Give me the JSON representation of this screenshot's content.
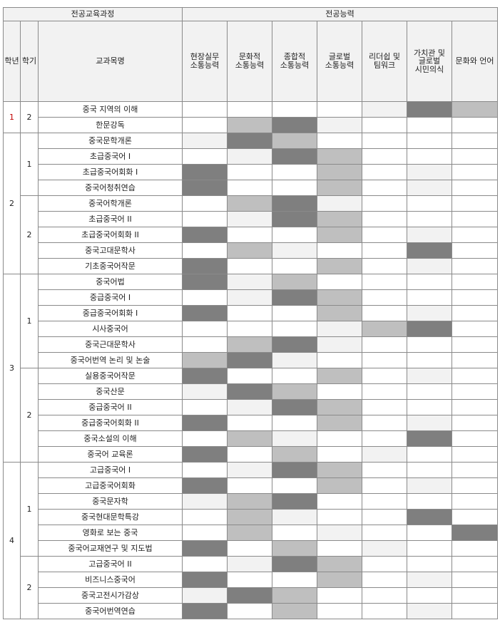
{
  "header": {
    "group_curriculum": "전공교육과정",
    "group_competency": "전공능력",
    "col_year": "학년",
    "col_semester": "학기",
    "col_subject": "교과목명",
    "competencies": [
      "현장실무\n소통능력",
      "문화적\n소통능력",
      "종합적\n소통능력",
      "글로벌\n소통능력",
      "리더쉽 및\n팀워크",
      "가치관 및\n글로벌\n시민의식",
      "문화와 언어"
    ]
  },
  "levels": {
    "D": "#7f7f7f",
    "M": "#bfbfbf",
    "L": "#f2f2f2",
    "N": "#ffffff"
  },
  "groups": [
    {
      "year": "1",
      "year_color": "#c00000",
      "semesters": [
        {
          "semester": "2",
          "courses": [
            {
              "name": "중국 지역의 이해",
              "levels": [
                "N",
                "N",
                "N",
                "N",
                "L",
                "D",
                "M"
              ]
            },
            {
              "name": "한문강독",
              "levels": [
                "N",
                "M",
                "D",
                "L",
                "N",
                "N",
                "N"
              ]
            }
          ]
        }
      ]
    },
    {
      "year": "2",
      "year_color": "#222222",
      "semesters": [
        {
          "semester": "1",
          "courses": [
            {
              "name": "중국문학개론",
              "levels": [
                "L",
                "D",
                "M",
                "N",
                "N",
                "N",
                "N"
              ]
            },
            {
              "name": "초급중국어 I",
              "levels": [
                "N",
                "L",
                "D",
                "M",
                "N",
                "N",
                "N"
              ]
            },
            {
              "name": "초급중국어회화 I",
              "levels": [
                "D",
                "N",
                "N",
                "M",
                "N",
                "L",
                "N"
              ]
            },
            {
              "name": "중국어청취연습",
              "levels": [
                "D",
                "N",
                "N",
                "M",
                "N",
                "L",
                "N"
              ]
            }
          ]
        },
        {
          "semester": "2",
          "courses": [
            {
              "name": "중국어학개론",
              "levels": [
                "N",
                "M",
                "D",
                "L",
                "N",
                "N",
                "N"
              ]
            },
            {
              "name": "초급중국어 II",
              "levels": [
                "N",
                "L",
                "D",
                "M",
                "N",
                "N",
                "N"
              ]
            },
            {
              "name": "초급중국어회화 II",
              "levels": [
                "D",
                "N",
                "N",
                "M",
                "N",
                "L",
                "N"
              ]
            },
            {
              "name": "중국고대문학사",
              "levels": [
                "N",
                "M",
                "L",
                "N",
                "N",
                "D",
                "N"
              ]
            },
            {
              "name": "기초중국어작문",
              "levels": [
                "D",
                "N",
                "N",
                "M",
                "N",
                "L",
                "N"
              ]
            }
          ]
        }
      ]
    },
    {
      "year": "3",
      "year_color": "#222222",
      "semesters": [
        {
          "semester": "1",
          "courses": [
            {
              "name": "중국어법",
              "levels": [
                "D",
                "L",
                "M",
                "N",
                "N",
                "N",
                "N"
              ]
            },
            {
              "name": "중급중국어 I",
              "levels": [
                "N",
                "L",
                "D",
                "M",
                "N",
                "N",
                "N"
              ]
            },
            {
              "name": "중급중국어회화 I",
              "levels": [
                "D",
                "N",
                "N",
                "M",
                "N",
                "L",
                "N"
              ]
            },
            {
              "name": "시사중국어",
              "levels": [
                "N",
                "N",
                "N",
                "L",
                "M",
                "D",
                "N"
              ]
            },
            {
              "name": "중국근대문학사",
              "levels": [
                "N",
                "M",
                "D",
                "L",
                "N",
                "N",
                "N"
              ]
            },
            {
              "name": "중국어번역 논리 및 논술",
              "levels": [
                "M",
                "D",
                "L",
                "N",
                "N",
                "N",
                "N"
              ]
            }
          ]
        },
        {
          "semester": "2",
          "courses": [
            {
              "name": "실용중국어작문",
              "levels": [
                "D",
                "N",
                "N",
                "M",
                "N",
                "L",
                "N"
              ]
            },
            {
              "name": "중국산문",
              "levels": [
                "L",
                "D",
                "M",
                "N",
                "N",
                "N",
                "N"
              ]
            },
            {
              "name": "중급중국어 II",
              "levels": [
                "N",
                "L",
                "D",
                "M",
                "N",
                "N",
                "N"
              ]
            },
            {
              "name": "중급중국어회화 II",
              "levels": [
                "D",
                "N",
                "N",
                "M",
                "N",
                "L",
                "N"
              ]
            },
            {
              "name": "중국소설의 이해",
              "levels": [
                "N",
                "M",
                "L",
                "N",
                "N",
                "D",
                "N"
              ]
            },
            {
              "name": "중국어 교육론",
              "levels": [
                "D",
                "N",
                "M",
                "N",
                "L",
                "N",
                "N"
              ]
            }
          ]
        }
      ]
    },
    {
      "year": "4",
      "year_color": "#222222",
      "semesters": [
        {
          "semester": "1",
          "courses": [
            {
              "name": "고급중국어 I",
              "levels": [
                "N",
                "L",
                "D",
                "M",
                "N",
                "N",
                "N"
              ]
            },
            {
              "name": "고급중국어회화",
              "levels": [
                "D",
                "N",
                "N",
                "M",
                "N",
                "L",
                "N"
              ]
            },
            {
              "name": "중국문자학",
              "levels": [
                "L",
                "M",
                "D",
                "N",
                "N",
                "N",
                "N"
              ]
            },
            {
              "name": "중국현대문학특강",
              "levels": [
                "N",
                "M",
                "L",
                "N",
                "N",
                "D",
                "N"
              ]
            },
            {
              "name": "영화로 보는 중국",
              "levels": [
                "N",
                "M",
                "N",
                "L",
                "N",
                "N",
                "D"
              ]
            },
            {
              "name": "중국어교재연구 및 지도법",
              "levels": [
                "D",
                "N",
                "M",
                "N",
                "L",
                "N",
                "N"
              ]
            }
          ]
        },
        {
          "semester": "2",
          "courses": [
            {
              "name": "고급중국어 II",
              "levels": [
                "N",
                "L",
                "D",
                "M",
                "N",
                "N",
                "N"
              ]
            },
            {
              "name": "비즈니스중국어",
              "levels": [
                "D",
                "N",
                "N",
                "M",
                "N",
                "L",
                "N"
              ]
            },
            {
              "name": "중국고전시가감상",
              "levels": [
                "L",
                "D",
                "M",
                "N",
                "N",
                "N",
                "N"
              ]
            },
            {
              "name": "중국어번역연습",
              "levels": [
                "D",
                "N",
                "M",
                "N",
                "N",
                "L",
                "N"
              ]
            }
          ]
        }
      ]
    }
  ]
}
